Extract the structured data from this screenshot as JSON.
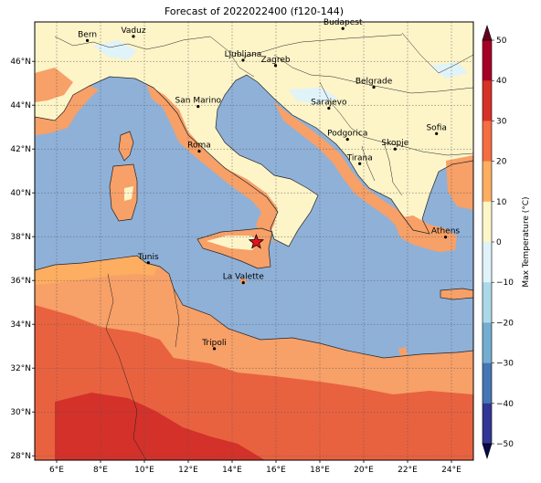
{
  "title": "Forecast of 2022022400 (f120-144)",
  "map": {
    "x_ticks": [
      "6°E",
      "8°E",
      "10°E",
      "12°E",
      "14°E",
      "16°E",
      "18°E",
      "20°E",
      "22°E",
      "24°E"
    ],
    "y_ticks": [
      "46°N",
      "44°N",
      "42°N",
      "40°N",
      "38°N",
      "36°N",
      "34°N",
      "32°N",
      "30°N",
      "28°N"
    ],
    "cities": [
      {
        "name": "Bern",
        "lon": 7.4,
        "lat": 46.95
      },
      {
        "name": "Vaduz",
        "lon": 9.5,
        "lat": 47.14
      },
      {
        "name": "Budapest",
        "lon": 19.05,
        "lat": 47.5
      },
      {
        "name": "Ljubljana",
        "lon": 14.5,
        "lat": 46.05
      },
      {
        "name": "Zagreb",
        "lon": 15.98,
        "lat": 45.81
      },
      {
        "name": "Belgrade",
        "lon": 20.46,
        "lat": 44.82
      },
      {
        "name": "San Marino",
        "lon": 12.45,
        "lat": 43.94
      },
      {
        "name": "Sarajevo",
        "lon": 18.41,
        "lat": 43.86
      },
      {
        "name": "Sofia",
        "lon": 23.32,
        "lat": 42.7
      },
      {
        "name": "Podgorica",
        "lon": 19.26,
        "lat": 42.44
      },
      {
        "name": "Skopje",
        "lon": 21.43,
        "lat": 42.0
      },
      {
        "name": "Roma",
        "lon": 12.5,
        "lat": 41.9
      },
      {
        "name": "Tirana",
        "lon": 19.82,
        "lat": 41.33
      },
      {
        "name": "Athens",
        "lon": 23.73,
        "lat": 37.98
      },
      {
        "name": "Tunis",
        "lon": 10.18,
        "lat": 36.81
      },
      {
        "name": "La Valette",
        "lon": 14.51,
        "lat": 35.9
      },
      {
        "name": "Tripoli",
        "lon": 13.19,
        "lat": 32.89
      }
    ],
    "marker": {
      "symbol": "star",
      "lon": 15.1,
      "lat": 37.75,
      "color": "#e8101a"
    }
  },
  "colorbar": {
    "label": "Max Temperature (°C)",
    "ticks": [
      "50",
      "40",
      "30",
      "20",
      "10",
      "0",
      "−10",
      "−20",
      "−30",
      "−40",
      "−50"
    ],
    "colors": [
      "#a50026",
      "#d73027",
      "#f46d43",
      "#fdae61",
      "#fef6c8",
      "#e0f3f8",
      "#abd9e9",
      "#74add1",
      "#4575b4",
      "#313695"
    ]
  }
}
